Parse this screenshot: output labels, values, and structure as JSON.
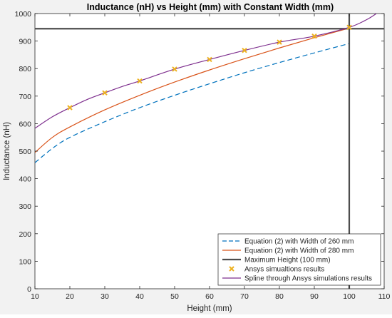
{
  "chart_data": {
    "type": "line",
    "title": "Inductance (nH) vs Height (mm) with Constant Width (mm)",
    "xlabel": "Height (mm)",
    "ylabel": "Inductance (nH)",
    "xlim": [
      10,
      110
    ],
    "ylim": [
      0,
      1000
    ],
    "xticks": [
      10,
      20,
      30,
      40,
      50,
      60,
      70,
      80,
      90,
      100,
      110
    ],
    "yticks": [
      0,
      100,
      200,
      300,
      400,
      500,
      600,
      700,
      800,
      900,
      1000
    ],
    "grid": false,
    "legend_position": "bottom-right",
    "series": [
      {
        "name": "Equation (2) with Width of 260 mm",
        "style": "dashed",
        "color": "#0072bd",
        "x": [
          10,
          15,
          20,
          30,
          40,
          50,
          60,
          70,
          80,
          90,
          100
        ],
        "y": [
          458,
          510,
          550,
          607,
          658,
          703,
          745,
          785,
          822,
          857,
          891
        ]
      },
      {
        "name": "Equation (2) with Width of 280 mm",
        "style": "solid",
        "color": "#d95319",
        "x": [
          10,
          15,
          20,
          30,
          40,
          50,
          60,
          70,
          80,
          90,
          100
        ],
        "y": [
          495,
          550,
          588,
          650,
          703,
          751,
          795,
          836,
          875,
          912,
          947
        ]
      },
      {
        "name": "Maximum Height (100 mm)",
        "style": "solid",
        "color": "#4d4d4d",
        "vline_x": 100,
        "hline_y": 945
      },
      {
        "name": "Ansys simualtions results",
        "style": "markers",
        "marker": "x",
        "color": "#edb120",
        "x": [
          20,
          30,
          40,
          50,
          60,
          70,
          80,
          90,
          100
        ],
        "y": [
          658,
          712,
          755,
          798,
          833,
          866,
          896,
          918,
          950
        ]
      },
      {
        "name": "Spline through Ansys simulations results",
        "style": "solid",
        "color": "#7e2f8e",
        "x": [
          10,
          15,
          20,
          25,
          30,
          35,
          40,
          50,
          60,
          70,
          80,
          90,
          100,
          105,
          108
        ],
        "y": [
          583,
          625,
          658,
          688,
          712,
          735,
          755,
          798,
          833,
          866,
          896,
          918,
          950,
          978,
          1002
        ]
      }
    ]
  }
}
